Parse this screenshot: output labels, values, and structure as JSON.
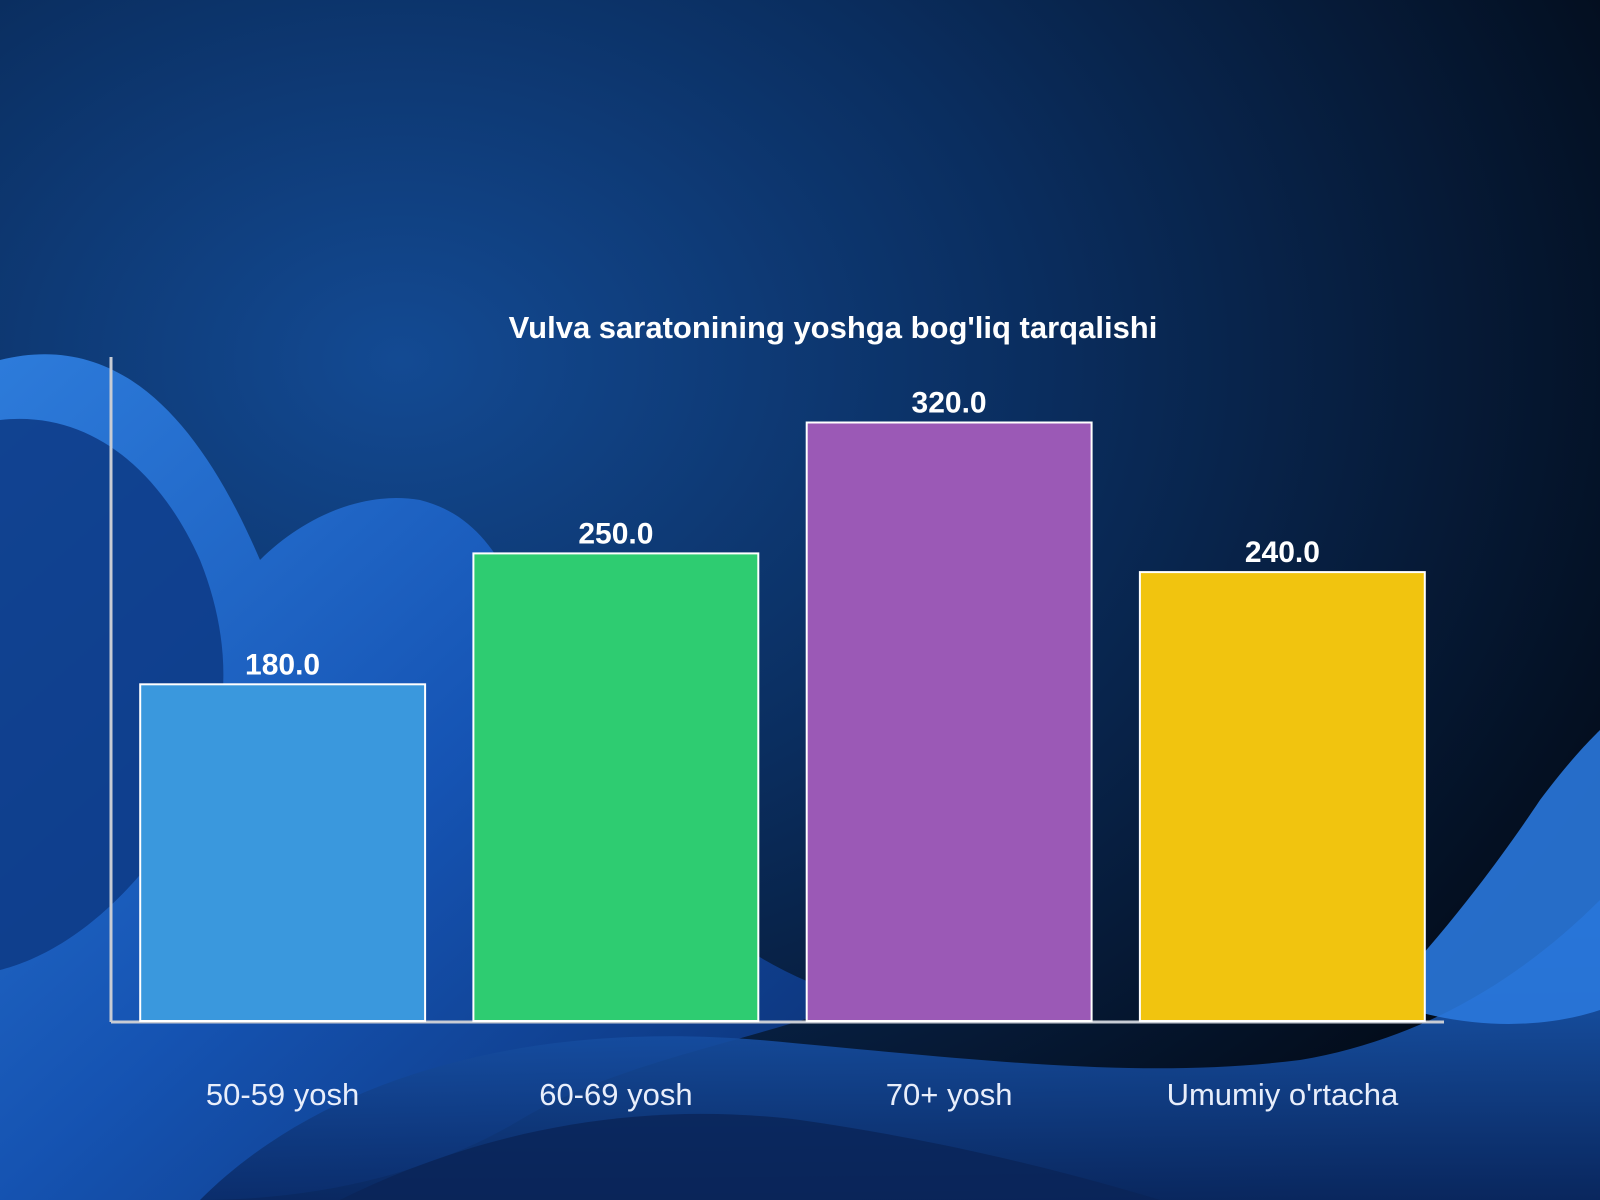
{
  "chart_data": {
    "type": "bar",
    "title": "Vulva saratonining yoshga bog'liq tarqalishi",
    "xlabel": "",
    "ylabel": "",
    "categories": [
      "50-59 yosh",
      "60-69 yosh",
      "70+ yosh",
      "Umumiy o'rtacha"
    ],
    "values": [
      180.0,
      250.0,
      320.0,
      240.0
    ],
    "value_labels": [
      "180.0",
      "250.0",
      "320.0",
      "240.0"
    ],
    "colors": [
      "#3a98dd",
      "#2ecc71",
      "#9b59b6",
      "#f1c40f"
    ],
    "ylim": [
      0,
      355
    ],
    "grid": false,
    "legend": "none"
  },
  "theme": {
    "background_dark": "#04101f",
    "wave_blue": "#1a5fc4",
    "axis_color": "#c8ccd4",
    "bar_border": "#ffffff"
  }
}
